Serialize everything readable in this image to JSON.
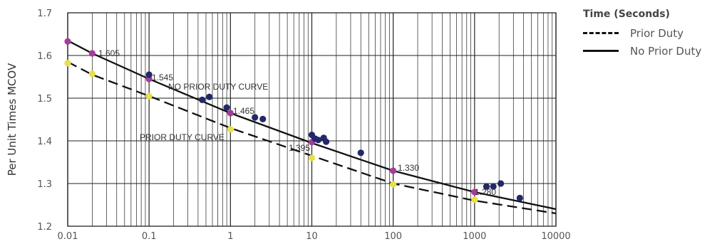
{
  "chart_data": {
    "type": "line",
    "title": "",
    "xlabel": "",
    "ylabel": "Per Unit Times MCOV",
    "xscale": "log",
    "xlim": [
      0.01,
      10000
    ],
    "ylim": [
      1.2,
      1.7
    ],
    "x_ticks": [
      "0.01",
      "0.1",
      "1",
      "10",
      "100",
      "1000",
      "10000"
    ],
    "y_ticks": [
      "1.2",
      "1.3",
      "1.4",
      "1.5",
      "1.6",
      "1.7"
    ],
    "grid": true,
    "legend_title": "Time (Seconds)",
    "legend_position": "right",
    "series": [
      {
        "name": "Prior Duty",
        "style": "dashed",
        "color": "#111111",
        "x": [
          0.01,
          0.02,
          0.1,
          1,
          10,
          100,
          1000,
          10000
        ],
        "y": [
          1.585,
          1.555,
          1.505,
          1.43,
          1.365,
          1.3,
          1.26,
          1.23
        ]
      },
      {
        "name": "No Prior Duty",
        "style": "solid",
        "color": "#111111",
        "x": [
          0.01,
          0.02,
          0.1,
          1,
          10,
          100,
          1000,
          10000
        ],
        "y": [
          1.635,
          1.605,
          1.545,
          1.465,
          1.395,
          1.33,
          1.28,
          1.24
        ]
      }
    ],
    "points": [
      {
        "group": "prior_duty",
        "color": "#e6e04a",
        "x": [
          0.01,
          0.02,
          0.1,
          1,
          10,
          100,
          1000
        ],
        "y": [
          1.582,
          1.557,
          1.505,
          1.427,
          1.36,
          1.298,
          1.262
        ]
      },
      {
        "group": "no_prior_duty",
        "color": "#a43c9c",
        "x": [
          0.01,
          0.02,
          0.1,
          1,
          10,
          100,
          1000
        ],
        "y": [
          1.633,
          1.605,
          1.545,
          1.465,
          1.397,
          1.33,
          1.28
        ]
      },
      {
        "group": "test_data",
        "color": "#242868",
        "x": [
          0.1,
          0.45,
          0.55,
          0.9,
          2.0,
          2.5,
          10,
          11,
          12,
          14,
          15,
          40,
          1400,
          1700,
          2100,
          3600
        ],
        "y": [
          1.555,
          1.496,
          1.503,
          1.478,
          1.455,
          1.451,
          1.414,
          1.405,
          1.402,
          1.407,
          1.398,
          1.372,
          1.293,
          1.293,
          1.3,
          1.266
        ]
      }
    ],
    "curve_labels": [
      "NO PRIOR DUTY CURVE",
      "PRIOR DUTY CURVE"
    ],
    "annotations": [
      "1.605",
      "1.545",
      "1.465",
      "1.395",
      "1.330",
      "1.280"
    ]
  }
}
